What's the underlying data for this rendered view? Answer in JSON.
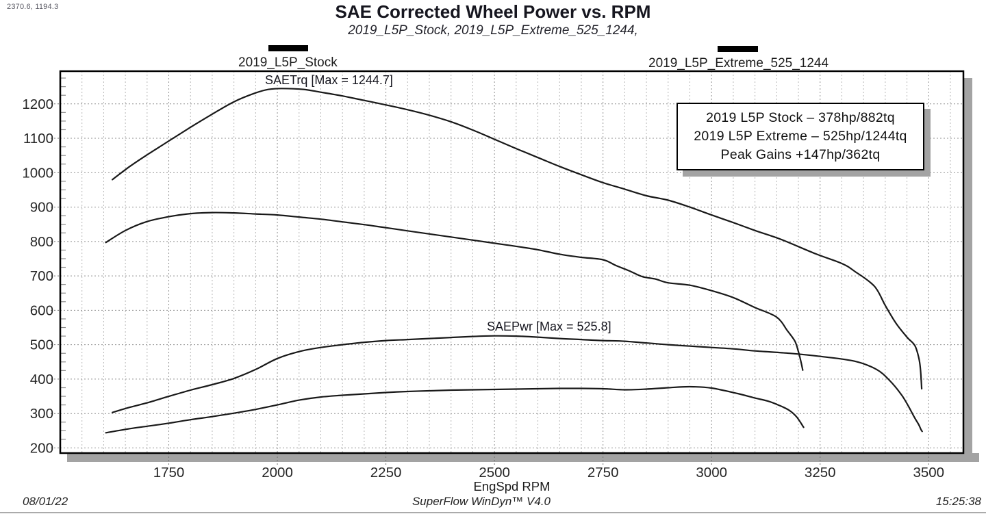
{
  "status": {
    "cursor_position": "2370.6, 1194.3",
    "date": "08/01/22",
    "app_version": "SuperFlow WinDyn™ V4.0",
    "time": "15:25:38"
  },
  "header": {
    "title": "SAE Corrected Wheel Power vs. RPM",
    "subtitle": "2019_L5P_Stock, 2019_L5P_Extreme_525_1244,"
  },
  "legend": [
    {
      "label": "2019_L5P_Stock"
    },
    {
      "label": "2019_L5P_Extreme_525_1244"
    }
  ],
  "annotations": {
    "torque_max": "SAETrq [Max = 1244.7]",
    "power_max": "SAEPwr [Max = 525.8]"
  },
  "info_box": {
    "lines": [
      "2019 L5P Stock – 378hp/882tq",
      "2019 L5P Extreme – 525hp/1244tq",
      "Peak Gains +147hp/362tq"
    ]
  },
  "colors": {
    "curve": "#191919",
    "frame": "#000000",
    "grid_major": "#8f8f8f",
    "grid_minor": "#b5b5b5",
    "shadow": "#a3a3a3",
    "tick_label": "#262626"
  },
  "chart_data": {
    "type": "line",
    "title": "SAE Corrected Wheel Power vs. RPM",
    "subtitle": "2019_L5P_Stock, 2019_L5P_Extreme_525_1244,",
    "xlabel": "EngSpd RPM",
    "ylabel": "",
    "xlim": [
      1500,
      3580
    ],
    "ylim": [
      185,
      1295
    ],
    "x_ticks": [
      1750,
      2000,
      2250,
      2500,
      2750,
      3000,
      3250,
      3500
    ],
    "y_ticks": [
      200,
      300,
      400,
      500,
      600,
      700,
      800,
      900,
      1000,
      1100,
      1200
    ],
    "x_minor_step": 50,
    "y_minor_step": 25,
    "grid": true,
    "legend_position": "top",
    "series": [
      {
        "name": "2019_L5P_Extreme_525_1244 SAETrq",
        "max": 1244.7,
        "points": [
          [
            1620,
            980
          ],
          [
            1660,
            1018
          ],
          [
            1700,
            1052
          ],
          [
            1750,
            1092
          ],
          [
            1800,
            1132
          ],
          [
            1850,
            1170
          ],
          [
            1900,
            1206
          ],
          [
            1950,
            1232
          ],
          [
            1980,
            1242
          ],
          [
            2010,
            1244.7
          ],
          [
            2060,
            1242
          ],
          [
            2100,
            1234
          ],
          [
            2150,
            1223
          ],
          [
            2200,
            1210
          ],
          [
            2250,
            1197
          ],
          [
            2300,
            1183
          ],
          [
            2350,
            1167
          ],
          [
            2400,
            1148
          ],
          [
            2450,
            1124
          ],
          [
            2500,
            1097
          ],
          [
            2550,
            1070
          ],
          [
            2600,
            1044
          ],
          [
            2650,
            1018
          ],
          [
            2700,
            994
          ],
          [
            2750,
            971
          ],
          [
            2800,
            952
          ],
          [
            2850,
            933
          ],
          [
            2900,
            920
          ],
          [
            2950,
            900
          ],
          [
            3000,
            877
          ],
          [
            3050,
            855
          ],
          [
            3100,
            832
          ],
          [
            3160,
            806
          ],
          [
            3240,
            764
          ],
          [
            3300,
            736
          ],
          [
            3330,
            713
          ],
          [
            3375,
            670
          ],
          [
            3400,
            614
          ],
          [
            3425,
            562
          ],
          [
            3450,
            522
          ],
          [
            3468,
            498
          ],
          [
            3477,
            463
          ],
          [
            3481,
            430
          ],
          [
            3484,
            372
          ]
        ]
      },
      {
        "name": "2019_L5P_Stock SAETrq",
        "max": 882,
        "points": [
          [
            1605,
            797
          ],
          [
            1650,
            832
          ],
          [
            1700,
            858
          ],
          [
            1750,
            872
          ],
          [
            1800,
            881
          ],
          [
            1850,
            884
          ],
          [
            1900,
            883
          ],
          [
            1950,
            880
          ],
          [
            2000,
            877
          ],
          [
            2050,
            871
          ],
          [
            2100,
            865
          ],
          [
            2150,
            857
          ],
          [
            2200,
            849
          ],
          [
            2250,
            840
          ],
          [
            2300,
            831
          ],
          [
            2350,
            822
          ],
          [
            2400,
            813
          ],
          [
            2450,
            804
          ],
          [
            2500,
            795
          ],
          [
            2550,
            786
          ],
          [
            2600,
            776
          ],
          [
            2650,
            763
          ],
          [
            2700,
            754
          ],
          [
            2750,
            747
          ],
          [
            2780,
            730
          ],
          [
            2810,
            715
          ],
          [
            2840,
            698
          ],
          [
            2870,
            691
          ],
          [
            2900,
            680
          ],
          [
            2950,
            673
          ],
          [
            3000,
            657
          ],
          [
            3050,
            637
          ],
          [
            3100,
            608
          ],
          [
            3150,
            580
          ],
          [
            3175,
            540
          ],
          [
            3192,
            510
          ],
          [
            3200,
            480
          ],
          [
            3206,
            450
          ],
          [
            3210,
            426
          ]
        ]
      },
      {
        "name": "2019_L5P_Extreme_525_1244 SAEPwr",
        "max": 525.8,
        "points": [
          [
            1620,
            303
          ],
          [
            1660,
            318
          ],
          [
            1700,
            331
          ],
          [
            1750,
            350
          ],
          [
            1800,
            368
          ],
          [
            1850,
            384
          ],
          [
            1900,
            402
          ],
          [
            1950,
            428
          ],
          [
            2000,
            460
          ],
          [
            2050,
            480
          ],
          [
            2100,
            492
          ],
          [
            2150,
            500
          ],
          [
            2200,
            507
          ],
          [
            2250,
            512
          ],
          [
            2300,
            515
          ],
          [
            2350,
            518
          ],
          [
            2400,
            521
          ],
          [
            2450,
            524
          ],
          [
            2500,
            525.8
          ],
          [
            2550,
            525
          ],
          [
            2600,
            522
          ],
          [
            2650,
            518
          ],
          [
            2700,
            515
          ],
          [
            2750,
            512
          ],
          [
            2800,
            510
          ],
          [
            2850,
            505
          ],
          [
            2900,
            500
          ],
          [
            2950,
            496
          ],
          [
            3000,
            492
          ],
          [
            3050,
            488
          ],
          [
            3100,
            482
          ],
          [
            3180,
            475
          ],
          [
            3250,
            466
          ],
          [
            3330,
            452
          ],
          [
            3380,
            428
          ],
          [
            3410,
            396
          ],
          [
            3437,
            355
          ],
          [
            3453,
            322
          ],
          [
            3468,
            287
          ],
          [
            3477,
            268
          ],
          [
            3482,
            254
          ],
          [
            3485,
            248
          ]
        ]
      },
      {
        "name": "2019_L5P_Stock SAEPwr",
        "max": 378,
        "points": [
          [
            1605,
            244
          ],
          [
            1660,
            256
          ],
          [
            1700,
            263
          ],
          [
            1750,
            272
          ],
          [
            1800,
            282
          ],
          [
            1850,
            291
          ],
          [
            1900,
            301
          ],
          [
            1950,
            312
          ],
          [
            2000,
            325
          ],
          [
            2050,
            339
          ],
          [
            2100,
            348
          ],
          [
            2150,
            353
          ],
          [
            2200,
            357
          ],
          [
            2250,
            361
          ],
          [
            2300,
            364
          ],
          [
            2350,
            366
          ],
          [
            2400,
            368
          ],
          [
            2450,
            369
          ],
          [
            2500,
            370
          ],
          [
            2550,
            371
          ],
          [
            2600,
            372
          ],
          [
            2650,
            373
          ],
          [
            2700,
            373
          ],
          [
            2750,
            372
          ],
          [
            2800,
            369
          ],
          [
            2850,
            371
          ],
          [
            2900,
            375
          ],
          [
            2950,
            378
          ],
          [
            3000,
            374
          ],
          [
            3060,
            358
          ],
          [
            3100,
            345
          ],
          [
            3130,
            336
          ],
          [
            3155,
            324
          ],
          [
            3178,
            310
          ],
          [
            3196,
            290
          ],
          [
            3212,
            260
          ]
        ]
      }
    ]
  }
}
